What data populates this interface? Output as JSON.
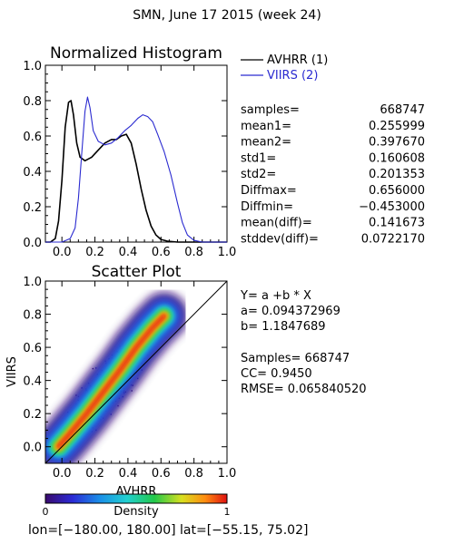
{
  "page_title": "SMN,  June 17 2015 (week 24)",
  "colors": {
    "avhrr": "#000000",
    "viirs": "#2a2ad0",
    "axis": "#000000"
  },
  "histogram": {
    "title": "Normalized Histogram",
    "legend": [
      {
        "label": "AVHRR (1)",
        "color": "#000000"
      },
      {
        "label": "VIIRS (2)",
        "color": "#2a2ad0"
      }
    ],
    "stats": [
      {
        "label": "samples=",
        "value": "668747"
      },
      {
        "label": "mean1=",
        "value": "0.255999"
      },
      {
        "label": "mean2=",
        "value": "0.397670"
      },
      {
        "label": "std1=",
        "value": "0.160608"
      },
      {
        "label": "std2=",
        "value": "0.201353"
      },
      {
        "label": "Diffmax=",
        "value": "0.656000"
      },
      {
        "label": "Diffmin=",
        "value": "−0.453000"
      },
      {
        "label": "mean(diff)=",
        "value": "0.141673"
      },
      {
        "label": "stddev(diff)=",
        "value": "0.0722170"
      }
    ]
  },
  "scatter": {
    "title": "Scatter Plot",
    "xlabel": "AVHRR",
    "ylabel": "VIIRS",
    "fit_lines": [
      "Y= a +b * X",
      "a= 0.094372969",
      "b= 1.1847689"
    ],
    "summary_lines": [
      "Samples= 668747",
      "CC=  0.9450",
      "RMSE= 0.065840520"
    ]
  },
  "colorbar": {
    "label": "Density",
    "min_label": "0",
    "max_label": "1"
  },
  "footer": "lon=[−180.00, 180.00] lat=[−55.15, 75.02]",
  "chart_data": [
    {
      "type": "line",
      "title": "Normalized Histogram",
      "xlim": [
        -0.1,
        1.0
      ],
      "ylim": [
        0.0,
        1.0
      ],
      "xticks": [
        "0.0",
        "0.2",
        "0.4",
        "0.6",
        "0.8",
        "1.0"
      ],
      "yticks": [
        "0.0",
        "0.2",
        "0.4",
        "0.6",
        "0.8",
        "1.0"
      ],
      "legend_position": "top-right outside",
      "series": [
        {
          "name": "AVHRR (1)",
          "color": "#000000",
          "points": [
            [
              -0.1,
              0.0
            ],
            [
              -0.07,
              0.0
            ],
            [
              -0.04,
              0.02
            ],
            [
              -0.02,
              0.12
            ],
            [
              0.0,
              0.35
            ],
            [
              0.02,
              0.65
            ],
            [
              0.04,
              0.79
            ],
            [
              0.055,
              0.8
            ],
            [
              0.07,
              0.72
            ],
            [
              0.09,
              0.56
            ],
            [
              0.11,
              0.48
            ],
            [
              0.14,
              0.46
            ],
            [
              0.18,
              0.48
            ],
            [
              0.22,
              0.52
            ],
            [
              0.26,
              0.56
            ],
            [
              0.3,
              0.58
            ],
            [
              0.33,
              0.58
            ],
            [
              0.36,
              0.6
            ],
            [
              0.39,
              0.61
            ],
            [
              0.42,
              0.56
            ],
            [
              0.45,
              0.44
            ],
            [
              0.48,
              0.3
            ],
            [
              0.51,
              0.18
            ],
            [
              0.54,
              0.09
            ],
            [
              0.57,
              0.04
            ],
            [
              0.6,
              0.015
            ],
            [
              0.64,
              0.005
            ],
            [
              0.7,
              0.0
            ],
            [
              1.0,
              0.0
            ]
          ]
        },
        {
          "name": "VIIRS (2)",
          "color": "#2a2ad0",
          "points": [
            [
              -0.1,
              0.0
            ],
            [
              0.0,
              0.0
            ],
            [
              0.05,
              0.02
            ],
            [
              0.08,
              0.08
            ],
            [
              0.1,
              0.25
            ],
            [
              0.12,
              0.5
            ],
            [
              0.14,
              0.74
            ],
            [
              0.155,
              0.82
            ],
            [
              0.17,
              0.76
            ],
            [
              0.19,
              0.63
            ],
            [
              0.22,
              0.57
            ],
            [
              0.26,
              0.55
            ],
            [
              0.3,
              0.56
            ],
            [
              0.34,
              0.59
            ],
            [
              0.38,
              0.63
            ],
            [
              0.42,
              0.66
            ],
            [
              0.46,
              0.7
            ],
            [
              0.49,
              0.72
            ],
            [
              0.52,
              0.71
            ],
            [
              0.55,
              0.68
            ],
            [
              0.58,
              0.61
            ],
            [
              0.62,
              0.51
            ],
            [
              0.66,
              0.38
            ],
            [
              0.7,
              0.22
            ],
            [
              0.73,
              0.11
            ],
            [
              0.76,
              0.04
            ],
            [
              0.8,
              0.01
            ],
            [
              0.85,
              0.0
            ],
            [
              1.0,
              0.0
            ]
          ]
        }
      ]
    },
    {
      "type": "heatmap",
      "title": "Scatter Plot",
      "xlabel": "AVHRR",
      "ylabel": "VIIRS",
      "xlim": [
        -0.1,
        1.0
      ],
      "ylim": [
        -0.1,
        1.0
      ],
      "xticks": [
        "0.0",
        "0.2",
        "0.4",
        "0.6",
        "0.8",
        "1.0"
      ],
      "yticks": [
        "0.0",
        "0.2",
        "0.4",
        "0.6",
        "0.8",
        "1.0"
      ],
      "one_to_one_line": true,
      "fit": {
        "a": 0.094372969,
        "b": 1.1847689
      },
      "density_ridge": [
        [
          -0.02,
          0.0
        ],
        [
          0.05,
          0.08
        ],
        [
          0.15,
          0.2
        ],
        [
          0.25,
          0.33
        ],
        [
          0.35,
          0.46
        ],
        [
          0.45,
          0.6
        ],
        [
          0.55,
          0.72
        ],
        [
          0.62,
          0.79
        ]
      ],
      "colorbar_range": [
        0,
        1
      ]
    }
  ]
}
